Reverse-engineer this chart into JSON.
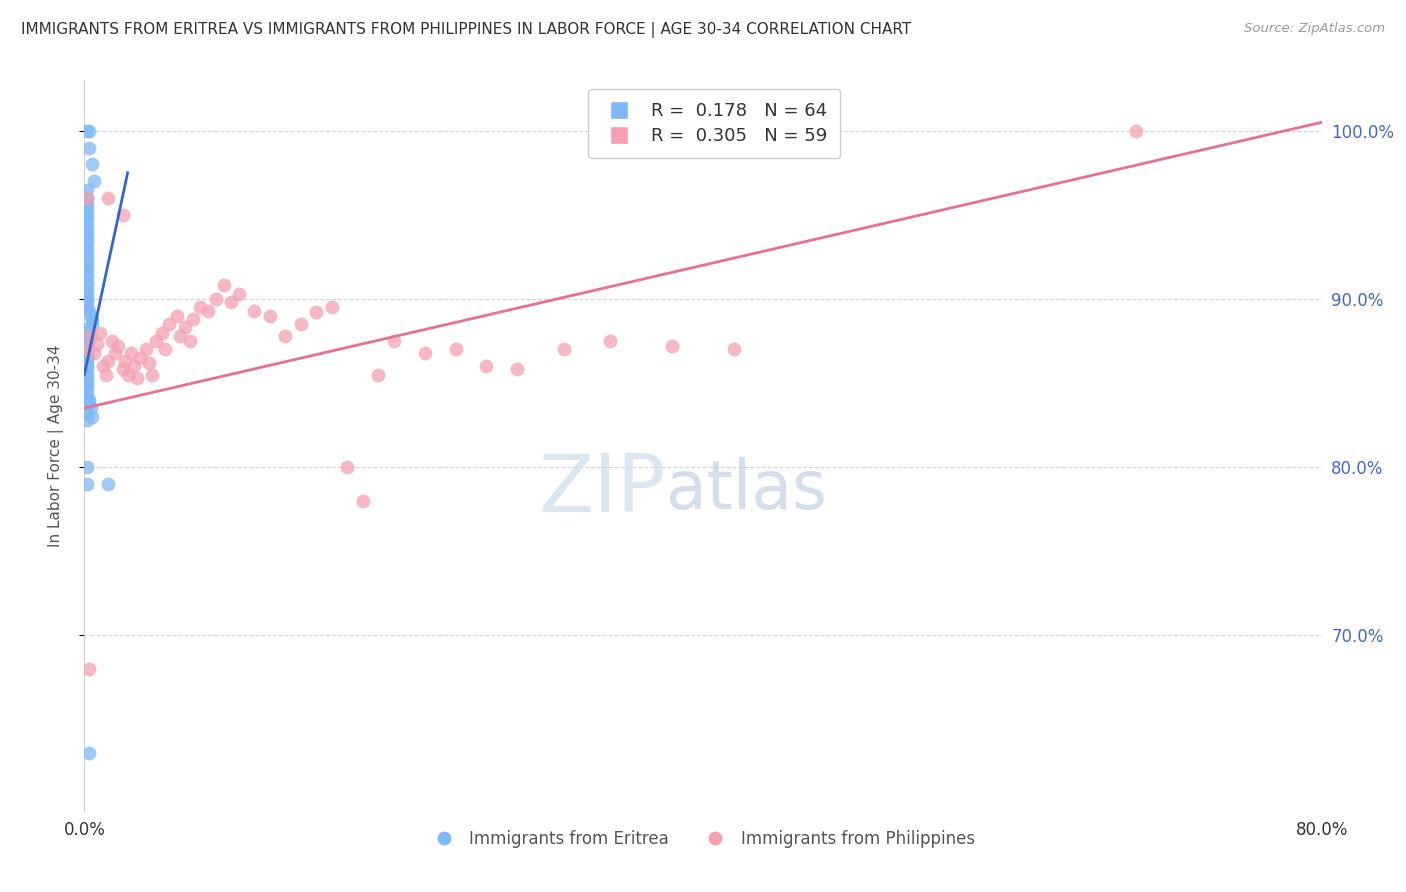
{
  "title": "IMMIGRANTS FROM ERITREA VS IMMIGRANTS FROM PHILIPPINES IN LABOR FORCE | AGE 30-34 CORRELATION CHART",
  "source": "Source: ZipAtlas.com",
  "ylabel": "In Labor Force | Age 30-34",
  "legend_labels": [
    "Immigrants from Eritrea",
    "Immigrants from Philippines"
  ],
  "r_eritrea": 0.178,
  "n_eritrea": 64,
  "r_philippines": 0.305,
  "n_philippines": 59,
  "color_eritrea": "#7EB8F7",
  "color_philippines": "#F4A0B0",
  "line_color_eritrea": "#3366CC",
  "line_color_philippines": "#E87090",
  "xmin": 0.0,
  "xmax": 0.8,
  "ymin": 0.595,
  "ymax": 1.03,
  "yticks_right": [
    0.7,
    0.8,
    0.9,
    1.0
  ],
  "ytick_labels_right": [
    "70.0%",
    "80.0%",
    "90.0%",
    "100.0%"
  ],
  "xticks": [
    0.0,
    0.1,
    0.2,
    0.3,
    0.4,
    0.5,
    0.6,
    0.7,
    0.8
  ],
  "watermark_zip": "ZIP",
  "watermark_atlas": "atlas",
  "eritrea_x": [
    0.002,
    0.003,
    0.003,
    0.005,
    0.006,
    0.002,
    0.002,
    0.002,
    0.002,
    0.002,
    0.002,
    0.002,
    0.002,
    0.002,
    0.002,
    0.002,
    0.002,
    0.002,
    0.002,
    0.002,
    0.002,
    0.002,
    0.002,
    0.002,
    0.002,
    0.002,
    0.002,
    0.002,
    0.002,
    0.002,
    0.002,
    0.002,
    0.002,
    0.003,
    0.004,
    0.005,
    0.005,
    0.002,
    0.002,
    0.002,
    0.002,
    0.002,
    0.002,
    0.002,
    0.002,
    0.002,
    0.002,
    0.002,
    0.002,
    0.002,
    0.002,
    0.002,
    0.002,
    0.002,
    0.003,
    0.003,
    0.004,
    0.002,
    0.005,
    0.002,
    0.002,
    0.002,
    0.015,
    0.003
  ],
  "eritrea_y": [
    1.0,
    1.0,
    0.99,
    0.98,
    0.97,
    0.965,
    0.96,
    0.958,
    0.955,
    0.953,
    0.95,
    0.948,
    0.945,
    0.942,
    0.94,
    0.938,
    0.935,
    0.933,
    0.93,
    0.928,
    0.925,
    0.923,
    0.92,
    0.918,
    0.915,
    0.913,
    0.91,
    0.908,
    0.905,
    0.903,
    0.9,
    0.898,
    0.895,
    0.893,
    0.89,
    0.888,
    0.885,
    0.882,
    0.88,
    0.878,
    0.875,
    0.873,
    0.87,
    0.868,
    0.865,
    0.863,
    0.86,
    0.858,
    0.855,
    0.853,
    0.85,
    0.848,
    0.845,
    0.842,
    0.84,
    0.838,
    0.835,
    0.832,
    0.83,
    0.828,
    0.8,
    0.79,
    0.79,
    0.63
  ],
  "philippines_x": [
    0.002,
    0.004,
    0.006,
    0.008,
    0.01,
    0.012,
    0.014,
    0.015,
    0.018,
    0.02,
    0.022,
    0.025,
    0.026,
    0.028,
    0.03,
    0.032,
    0.034,
    0.036,
    0.04,
    0.042,
    0.044,
    0.046,
    0.05,
    0.052,
    0.055,
    0.06,
    0.062,
    0.065,
    0.068,
    0.07,
    0.075,
    0.08,
    0.085,
    0.09,
    0.095,
    0.1,
    0.11,
    0.12,
    0.13,
    0.14,
    0.15,
    0.16,
    0.17,
    0.18,
    0.19,
    0.2,
    0.22,
    0.24,
    0.26,
    0.28,
    0.31,
    0.34,
    0.38,
    0.42,
    0.002,
    0.015,
    0.025,
    0.68,
    0.003
  ],
  "philippines_y": [
    0.87,
    0.878,
    0.868,
    0.873,
    0.88,
    0.86,
    0.855,
    0.863,
    0.875,
    0.868,
    0.872,
    0.858,
    0.863,
    0.855,
    0.868,
    0.86,
    0.853,
    0.865,
    0.87,
    0.862,
    0.855,
    0.875,
    0.88,
    0.87,
    0.885,
    0.89,
    0.878,
    0.883,
    0.875,
    0.888,
    0.895,
    0.893,
    0.9,
    0.908,
    0.898,
    0.903,
    0.893,
    0.89,
    0.878,
    0.885,
    0.892,
    0.895,
    0.8,
    0.78,
    0.855,
    0.875,
    0.868,
    0.87,
    0.86,
    0.858,
    0.87,
    0.875,
    0.872,
    0.87,
    0.96,
    0.96,
    0.95,
    1.0,
    0.68
  ]
}
